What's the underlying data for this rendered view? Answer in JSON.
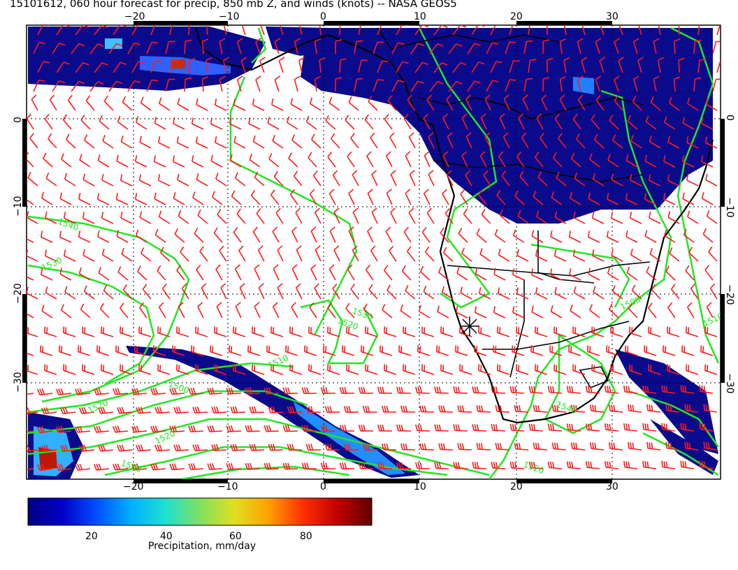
{
  "title": "15101612, 060 hour forecast for precip, 850 mb Z, and winds (knots) -- NASA GEOS5",
  "map": {
    "lon_range": [
      -30,
      40
    ],
    "lat_range": [
      -40,
      10
    ],
    "lon_ticks": [
      "−20",
      "−10",
      "0",
      "10",
      "20",
      "30"
    ],
    "lat_ticks": [
      "0",
      "−10",
      "−20",
      "−30"
    ],
    "contour_labels": [
      "1540",
      "1530",
      "1520",
      "1510",
      "1500",
      "1520",
      "1530",
      "1510",
      "1500",
      "1520",
      "1540",
      "1500",
      "1520"
    ],
    "colors": {
      "contour": "#22e622",
      "wind": "#ff1a1a",
      "coast": "#000000",
      "precip_low": "#0a0a8c",
      "precip_high": "#7a0000"
    },
    "layers": {
      "precip": "shaded",
      "height_contours": "850 mb Z",
      "winds": "barbs (knots)"
    }
  },
  "colorbar": {
    "ticks": [
      "20",
      "40",
      "60",
      "80"
    ],
    "range": [
      0,
      100
    ],
    "label": "Precipitation, mm/day",
    "stops": [
      "#000080",
      "#0000c8",
      "#0050ff",
      "#00b0ff",
      "#20e0d0",
      "#80e060",
      "#e0e020",
      "#ffa000",
      "#ff3000",
      "#c00000",
      "#600000"
    ]
  }
}
